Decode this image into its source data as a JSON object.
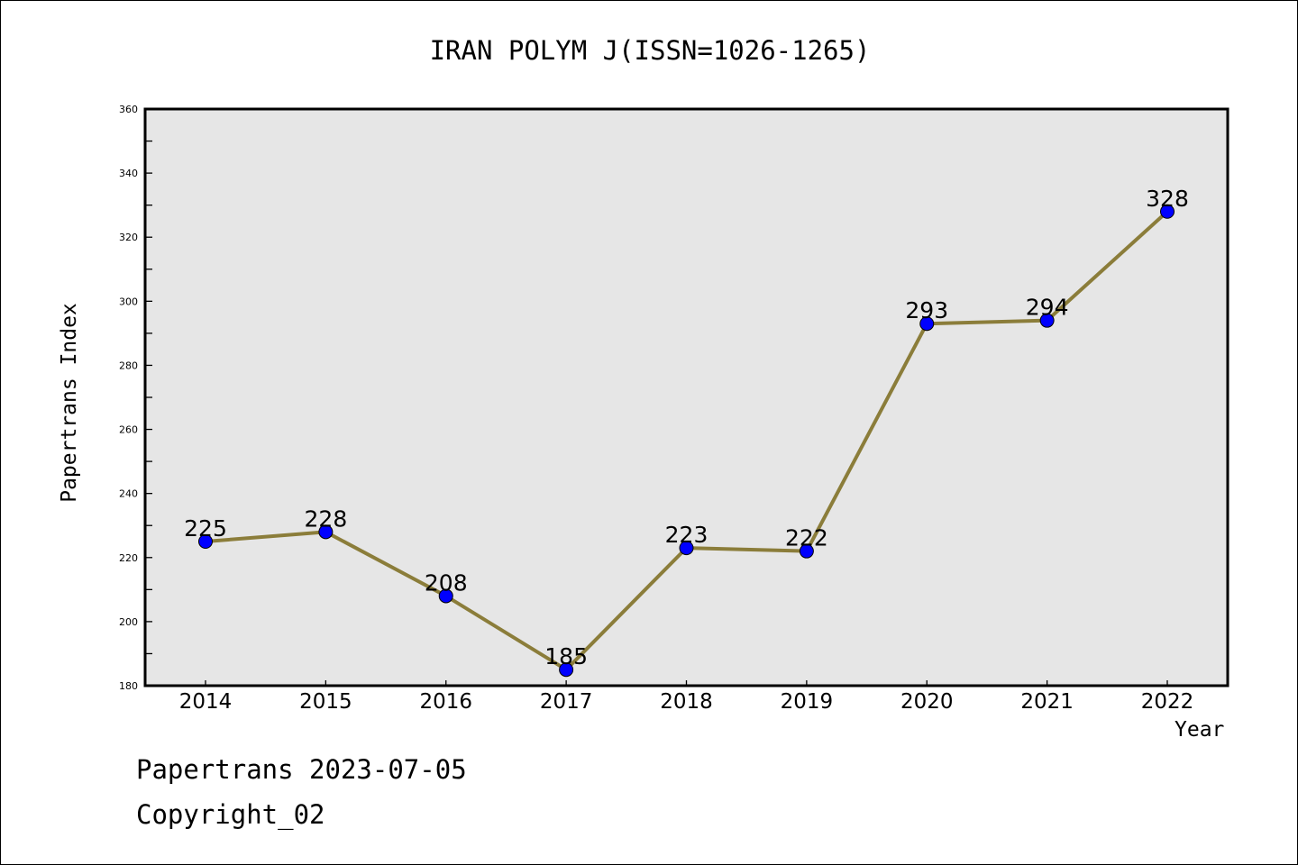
{
  "chart_data": {
    "type": "line",
    "title": "IRAN POLYM J(ISSN=1026-1265)",
    "xlabel": "Year",
    "ylabel": "Papertrans Index",
    "categories": [
      "2014",
      "2015",
      "2016",
      "2017",
      "2018",
      "2019",
      "2020",
      "2021",
      "2022"
    ],
    "values": [
      225,
      228,
      208,
      185,
      223,
      222,
      293,
      294,
      328
    ],
    "ylim": [
      180,
      360
    ],
    "yticks": [
      180,
      200,
      220,
      240,
      260,
      280,
      300,
      320,
      340,
      360
    ],
    "grid": false,
    "line_color": "#8B7D3A",
    "marker_color": "#0000FF",
    "plot_bg": "#E6E6E6"
  },
  "footer": {
    "line1": "Papertrans 2023-07-05",
    "line2": "Copyright_02"
  }
}
